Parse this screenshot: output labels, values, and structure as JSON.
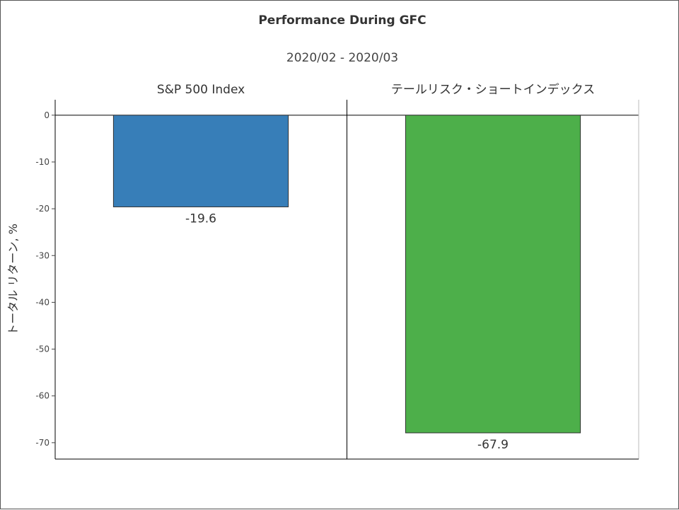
{
  "chart_data": {
    "type": "bar",
    "title": "Performance During GFC",
    "subtitle": "2020/02 - 2020/03",
    "ylabel": "トータル リターン, %",
    "ylim": [
      -73.5,
      3.3
    ],
    "yticks": [
      0,
      -10,
      -20,
      -30,
      -40,
      -50,
      -60,
      -70
    ],
    "grid": false,
    "panels": [
      {
        "name": "S&P 500 Index",
        "value": -19.6,
        "label": "-19.6",
        "color": "#377eb8"
      },
      {
        "name": "テールリスク・ショートインデックス",
        "value": -67.9,
        "label": "-67.9",
        "color": "#4daf4a"
      }
    ]
  }
}
